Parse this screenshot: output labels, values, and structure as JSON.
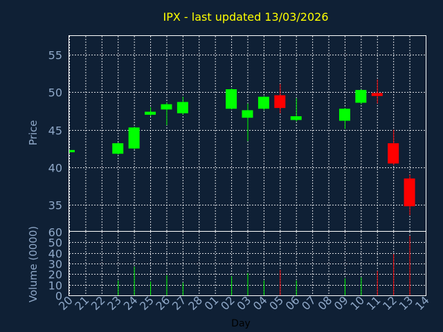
{
  "chart_data": {
    "type": "candlestick",
    "title": "IPX - last updated 13/03/2026",
    "xlabel": "Day",
    "price_panel": {
      "ylabel": "Price",
      "ylim": [
        31.5,
        57.5
      ],
      "yticks": [
        35,
        40,
        45,
        50,
        55
      ]
    },
    "volume_panel": {
      "ylabel": "Volume (0000)",
      "ylim": [
        0,
        60
      ],
      "yticks": [
        0,
        10,
        20,
        30,
        40,
        50,
        60
      ]
    },
    "x_tick_labels": [
      "20",
      "21",
      "22",
      "23",
      "24",
      "25",
      "26",
      "27",
      "28",
      "01",
      "02",
      "03",
      "04",
      "05",
      "06",
      "07",
      "08",
      "09",
      "10",
      "11",
      "12",
      "13",
      "14"
    ],
    "colors": {
      "up": "#00ff00",
      "down": "#ff0000",
      "background": "#0f2035",
      "grid": "#ffffff",
      "title": "#ffff00",
      "tick": "#8fa8c8"
    },
    "candles": [
      {
        "day": "20",
        "open": 42.0,
        "close": 42.3,
        "high": 42.3,
        "low": 41.9,
        "volume": 0
      },
      {
        "day": "23",
        "open": 41.8,
        "close": 43.2,
        "high": 43.3,
        "low": 41.7,
        "volume": 14
      },
      {
        "day": "24",
        "open": 42.5,
        "close": 45.3,
        "high": 45.4,
        "low": 42.4,
        "volume": 27
      },
      {
        "day": "25",
        "open": 47.0,
        "close": 47.4,
        "high": 48.0,
        "low": 46.8,
        "volume": 13
      },
      {
        "day": "26",
        "open": 47.7,
        "close": 48.4,
        "high": 48.6,
        "low": 45.6,
        "volume": 19
      },
      {
        "day": "27",
        "open": 47.2,
        "close": 48.7,
        "high": 49.4,
        "low": 47.0,
        "volume": 12
      },
      {
        "day": "02",
        "open": 47.8,
        "close": 50.4,
        "high": 50.5,
        "low": 47.7,
        "volume": 18
      },
      {
        "day": "03",
        "open": 46.6,
        "close": 47.6,
        "high": 48.5,
        "low": 43.5,
        "volume": 21
      },
      {
        "day": "04",
        "open": 47.8,
        "close": 49.4,
        "high": 49.5,
        "low": 47.6,
        "volume": 14
      },
      {
        "day": "05",
        "open": 49.6,
        "close": 47.9,
        "high": 51.1,
        "low": 47.2,
        "volume": 24
      },
      {
        "day": "06",
        "open": 46.3,
        "close": 46.8,
        "high": 49.2,
        "low": 46.1,
        "volume": 14
      },
      {
        "day": "09",
        "open": 46.2,
        "close": 47.8,
        "high": 47.9,
        "low": 45.1,
        "volume": 16
      },
      {
        "day": "10",
        "open": 48.6,
        "close": 50.3,
        "high": 50.4,
        "low": 48.4,
        "volume": 17
      },
      {
        "day": "11",
        "open": 49.9,
        "close": 49.5,
        "high": 51.7,
        "low": 48.5,
        "volume": 23
      },
      {
        "day": "12",
        "open": 43.2,
        "close": 40.5,
        "high": 45.0,
        "low": 40.3,
        "volume": 39
      },
      {
        "day": "13",
        "open": 38.5,
        "close": 34.8,
        "high": 39.0,
        "low": 33.6,
        "volume": 56
      }
    ]
  }
}
